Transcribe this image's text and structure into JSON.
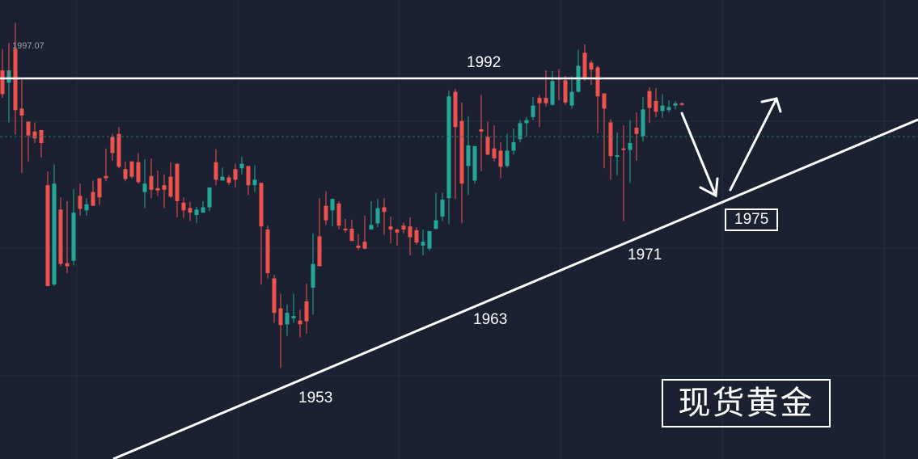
{
  "chart_data": {
    "type": "candlestick",
    "colors": {
      "background": "#1b2130",
      "up": "#26a69a",
      "down": "#ef5350",
      "grid": "#263041",
      "annotation": "#ffffff"
    },
    "ylim": [
      1940,
      2000
    ],
    "max_label": "1997.07",
    "resistance_label": "1992",
    "level_labels": {
      "low_1": "1953",
      "low_2": "1963",
      "low_3": "1971"
    },
    "target_label": "1975",
    "title": "现货黄金",
    "candles": [
      [
        1990.8,
        1993.6,
        1987.7,
        1987.2
      ],
      [
        1989.2,
        1993.9,
        1990.8,
        1984.0
      ],
      [
        1993.6,
        1997.0,
        1985.6,
        1982.4
      ],
      [
        1985.8,
        1989.6,
        1984.9,
        1977.4
      ],
      [
        1984.1,
        1984.1,
        1982.3,
        1978.9
      ],
      [
        1982.8,
        1984.0,
        1981.9,
        1981.3
      ],
      [
        1983.0,
        1983.0,
        1981.3,
        1979.4
      ],
      [
        1975.8,
        1977.6,
        1962.6,
        1962.6
      ],
      [
        1962.8,
        1978.5,
        1976.0,
        1962.6
      ],
      [
        1972.6,
        1974.2,
        1965.5,
        1965.2
      ],
      [
        1965.6,
        1973.7,
        1965.2,
        1964.3
      ],
      [
        1965.9,
        1975.3,
        1972.2,
        1965.3
      ],
      [
        1974.4,
        1976.0,
        1972.7,
        1971.8
      ],
      [
        1972.5,
        1974.1,
        1973.3,
        1971.8
      ],
      [
        1974.9,
        1976.4,
        1973.1,
        1973.1
      ],
      [
        1976.7,
        1976.7,
        1974.2,
        1973.2
      ],
      [
        1977.0,
        1980.6,
        1976.7,
        1976.3
      ],
      [
        1982.1,
        1982.5,
        1980.0,
        1979.0
      ],
      [
        1982.5,
        1983.4,
        1978.2,
        1978.0
      ],
      [
        1977.9,
        1978.9,
        1976.6,
        1976.3
      ],
      [
        1978.9,
        1978.9,
        1976.9,
        1976.7
      ],
      [
        1978.8,
        1980.0,
        1976.2,
        1976.0
      ],
      [
        1974.9,
        1979.2,
        1976.0,
        1972.8
      ],
      [
        1977.0,
        1979.3,
        1975.2,
        1974.1
      ],
      [
        1975.4,
        1977.7,
        1975.1,
        1974.4
      ],
      [
        1975.8,
        1977.2,
        1975.2,
        1972.8
      ],
      [
        1976.9,
        1978.8,
        1974.3,
        1974.1
      ],
      [
        1978.6,
        1978.6,
        1973.7,
        1971.6
      ],
      [
        1973.5,
        1974.2,
        1972.5,
        1971.5
      ],
      [
        1972.8,
        1973.6,
        1972.2,
        1971.1
      ],
      [
        1971.9,
        1973.0,
        1972.6,
        1970.8
      ],
      [
        1972.2,
        1973.7,
        1972.9,
        1972.4
      ],
      [
        1972.9,
        1974.8,
        1975.5,
        1972.4
      ],
      [
        1978.8,
        1980.5,
        1976.5,
        1975.8
      ],
      [
        1976.4,
        1978.1,
        1976.9,
        1976.4
      ],
      [
        1976.8,
        1977.1,
        1976.1,
        1975.8
      ],
      [
        1977.9,
        1978.6,
        1976.5,
        1975.5
      ],
      [
        1978.0,
        1979.5,
        1978.6,
        1977.2
      ],
      [
        1978.3,
        1978.3,
        1975.8,
        1974.5
      ],
      [
        1975.8,
        1978.4,
        1976.5,
        1974.9
      ],
      [
        1976.1,
        1974.0,
        1970.4,
        1962.8
      ],
      [
        1970.0,
        1970.5,
        1964.3,
        1963.6
      ],
      [
        1963.6,
        1964.1,
        1959.1,
        1957.8
      ],
      [
        1959.7,
        1961.6,
        1957.5,
        1951.9
      ],
      [
        1957.6,
        1960.2,
        1959.1,
        1956.1
      ],
      [
        1958.4,
        1961.6,
        1958.7,
        1957.8
      ],
      [
        1958.1,
        1959.5,
        1957.6,
        1955.9
      ],
      [
        1960.6,
        1962.9,
        1958.0,
        1956.4
      ],
      [
        1962.4,
        1969.5,
        1965.5,
        1958.9
      ],
      [
        1969.1,
        1974.1,
        1965.2,
        1966.2
      ],
      [
        1973.1,
        1975.0,
        1971.2,
        1970.6
      ],
      [
        1972.5,
        1974.0,
        1974.0,
        1970.4
      ],
      [
        1973.4,
        1973.7,
        1970.5,
        1970.0
      ],
      [
        1970.1,
        1971.4,
        1969.9,
        1969.6
      ],
      [
        1970.1,
        1971.3,
        1968.5,
        1968.8
      ],
      [
        1967.9,
        1969.4,
        1967.6,
        1967.3
      ],
      [
        1968.4,
        1971.8,
        1967.5,
        1967.4
      ],
      [
        1970.0,
        1973.7,
        1970.6,
        1970.1
      ],
      [
        1970.8,
        1974.0,
        1972.8,
        1970.3
      ],
      [
        1972.9,
        1974.1,
        1972.3,
        1969.3
      ],
      [
        1970.4,
        1971.7,
        1970.0,
        1968.2
      ],
      [
        1970.0,
        1970.1,
        1969.6,
        1967.9
      ],
      [
        1970.5,
        1970.9,
        1970.0,
        1969.5
      ],
      [
        1970.4,
        1971.6,
        1969.0,
        1966.6
      ],
      [
        1969.9,
        1970.3,
        1968.3,
        1968.0
      ],
      [
        1967.9,
        1970.0,
        1968.4,
        1966.6
      ],
      [
        1967.5,
        1969.0,
        1969.8,
        1967.2
      ],
      [
        1970.1,
        1974.8,
        1971.2,
        1970.0
      ],
      [
        1971.7,
        1974.8,
        1973.9,
        1971.1
      ],
      [
        1974.1,
        1988.2,
        1987.4,
        1970.7
      ],
      [
        1988.0,
        1988.4,
        1983.4,
        1974.0
      ],
      [
        1984.2,
        1986.6,
        1976.0,
        1970.8
      ],
      [
        1978.3,
        1984.8,
        1981.0,
        1974.5
      ],
      [
        1976.4,
        1980.1,
        1980.9,
        1976.0
      ],
      [
        1983.1,
        1987.6,
        1982.8,
        1977.6
      ],
      [
        1982.1,
        1984.1,
        1979.8,
        1979.7
      ],
      [
        1980.6,
        1983.6,
        1979.3,
        1978.9
      ],
      [
        1980.3,
        1981.4,
        1978.2,
        1976.7
      ],
      [
        1978.3,
        1982.5,
        1980.3,
        1978.1
      ],
      [
        1980.3,
        1983.2,
        1981.4,
        1979.8
      ],
      [
        1981.8,
        1984.3,
        1983.9,
        1981.4
      ],
      [
        1983.9,
        1984.7,
        1984.3,
        1982.1
      ],
      [
        1984.7,
        1987.3,
        1986.2,
        1984.3
      ],
      [
        1987.2,
        1987.6,
        1986.5,
        1983.4
      ],
      [
        1987.2,
        1990.8,
        1986.5,
        1986.1
      ],
      [
        1986.3,
        1990.7,
        1989.4,
        1986.2
      ],
      [
        1989.7,
        1991.0,
        1989.6,
        1986.9
      ],
      [
        1989.5,
        1990.1,
        1986.6,
        1986.3
      ],
      [
        1986.2,
        1990.0,
        1988.0,
        1985.8
      ],
      [
        1988.0,
        1993.5,
        1991.4,
        1987.9
      ],
      [
        1993.1,
        1994.2,
        1989.9,
        1989.4
      ],
      [
        1991.8,
        1992.1,
        1990.9,
        1988.9
      ],
      [
        1991.2,
        1991.4,
        1987.4,
        1982.6
      ],
      [
        1987.8,
        1987.8,
        1985.8,
        1978.0
      ],
      [
        1984.0,
        1984.4,
        1979.6,
        1976.5
      ],
      [
        1979.5,
        1982.7,
        1979.7,
        1977.1
      ],
      [
        1980.6,
        1983.6,
        1980.4,
        1971.1
      ],
      [
        1980.4,
        1984.3,
        1981.3,
        1976.1
      ],
      [
        1983.3,
        1985.3,
        1982.5,
        1979.0
      ],
      [
        1982.2,
        1987.3,
        1985.7,
        1981.5
      ],
      [
        1988.1,
        1988.6,
        1985.9,
        1983.9
      ],
      [
        1986.8,
        1988.5,
        1985.4,
        1984.7
      ],
      [
        1985.5,
        1987.7,
        1986.2,
        1984.6
      ],
      [
        1985.6,
        1986.9,
        1986.0,
        1985.3
      ],
      [
        1986.2,
        1986.8,
        1986.5,
        1985.7
      ],
      [
        1986.5,
        1986.6,
        1986.3,
        1986.2
      ]
    ]
  }
}
